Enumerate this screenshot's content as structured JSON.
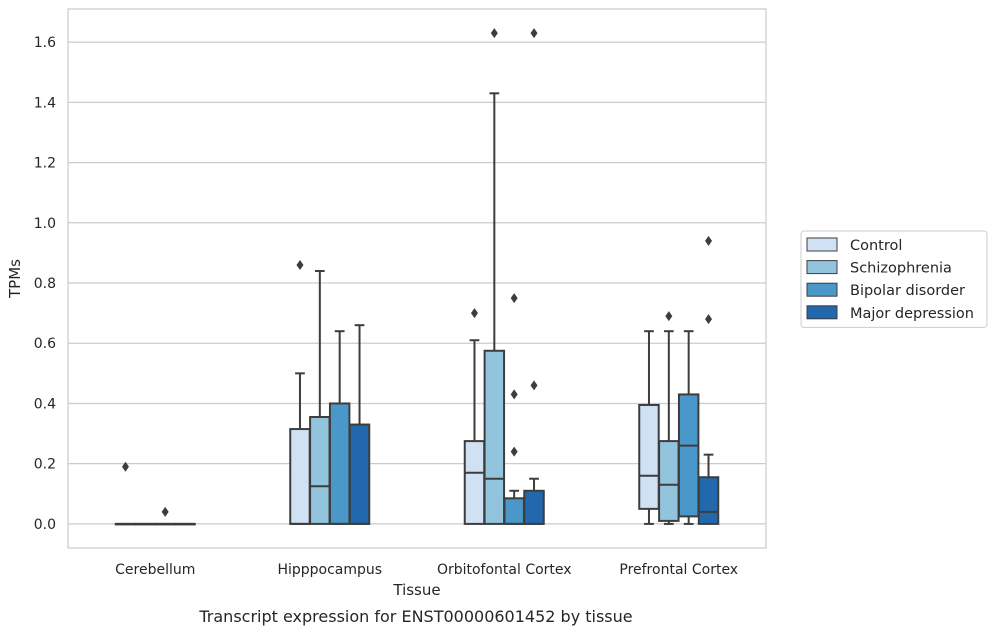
{
  "chart_data": {
    "type": "box",
    "xlabel": "Tissue",
    "ylabel": "TPMs",
    "caption": "Transcript expression for ENST00000601452 by tissue",
    "categories": [
      "Cerebellum",
      "Hipppocampus",
      "Orbitofontal Cortex",
      "Prefrontal Cortex"
    ],
    "ylim": [
      -0.08,
      1.71
    ],
    "yticks": [
      0.0,
      0.2,
      0.4,
      0.6,
      0.8,
      1.0,
      1.2,
      1.4,
      1.6
    ],
    "ytick_labels": [
      "0.0",
      "0.2",
      "0.4",
      "0.6",
      "0.8",
      "1.0",
      "1.2",
      "1.4",
      "1.6"
    ],
    "grid": "horizontal",
    "legend_position": "right",
    "series": [
      {
        "name": "Control",
        "color": "#cfe1f2",
        "boxes": [
          {
            "q1": 0.0,
            "median": 0.0,
            "q3": 0.0,
            "whisker_low": 0.0,
            "whisker_high": 0.0,
            "outliers": [
              0.19
            ]
          },
          {
            "q1": 0.0,
            "median": 0.0,
            "q3": 0.315,
            "whisker_low": 0.0,
            "whisker_high": 0.5,
            "outliers": [
              0.86
            ]
          },
          {
            "q1": 0.0,
            "median": 0.17,
            "q3": 0.275,
            "whisker_low": 0.0,
            "whisker_high": 0.61,
            "outliers": [
              0.7
            ]
          },
          {
            "q1": 0.05,
            "median": 0.16,
            "q3": 0.395,
            "whisker_low": 0.0,
            "whisker_high": 0.64,
            "outliers": []
          }
        ]
      },
      {
        "name": "Schizophrenia",
        "color": "#93c4de",
        "boxes": [
          {
            "q1": 0.0,
            "median": 0.0,
            "q3": 0.0,
            "whisker_low": 0.0,
            "whisker_high": 0.0,
            "outliers": []
          },
          {
            "q1": 0.0,
            "median": 0.125,
            "q3": 0.355,
            "whisker_low": 0.0,
            "whisker_high": 0.84,
            "outliers": []
          },
          {
            "q1": 0.0,
            "median": 0.15,
            "q3": 0.575,
            "whisker_low": 0.0,
            "whisker_high": 1.43,
            "outliers": [
              1.63
            ]
          },
          {
            "q1": 0.01,
            "median": 0.13,
            "q3": 0.275,
            "whisker_low": 0.0,
            "whisker_high": 0.64,
            "outliers": [
              0.69
            ]
          }
        ]
      },
      {
        "name": "Bipolar disorder",
        "color": "#4a98c9",
        "boxes": [
          {
            "q1": 0.0,
            "median": 0.0,
            "q3": 0.0,
            "whisker_low": 0.0,
            "whisker_high": 0.0,
            "outliers": [
              0.04
            ]
          },
          {
            "q1": 0.0,
            "median": 0.0,
            "q3": 0.4,
            "whisker_low": 0.0,
            "whisker_high": 0.64,
            "outliers": []
          },
          {
            "q1": 0.0,
            "median": 0.0,
            "q3": 0.085,
            "whisker_low": 0.0,
            "whisker_high": 0.11,
            "outliers": [
              0.24,
              0.43,
              0.75
            ]
          },
          {
            "q1": 0.025,
            "median": 0.26,
            "q3": 0.43,
            "whisker_low": 0.0,
            "whisker_high": 0.64,
            "outliers": []
          }
        ]
      },
      {
        "name": "Major depression",
        "color": "#2268ad",
        "boxes": [
          {
            "q1": 0.0,
            "median": 0.0,
            "q3": 0.0,
            "whisker_low": 0.0,
            "whisker_high": 0.0,
            "outliers": []
          },
          {
            "q1": 0.0,
            "median": 0.0,
            "q3": 0.33,
            "whisker_low": 0.0,
            "whisker_high": 0.66,
            "outliers": []
          },
          {
            "q1": 0.0,
            "median": 0.0,
            "q3": 0.11,
            "whisker_low": 0.0,
            "whisker_high": 0.15,
            "outliers": [
              0.46,
              1.63
            ]
          },
          {
            "q1": 0.0,
            "median": 0.04,
            "q3": 0.155,
            "whisker_low": 0.0,
            "whisker_high": 0.23,
            "outliers": [
              0.68,
              0.94
            ]
          }
        ]
      }
    ]
  }
}
